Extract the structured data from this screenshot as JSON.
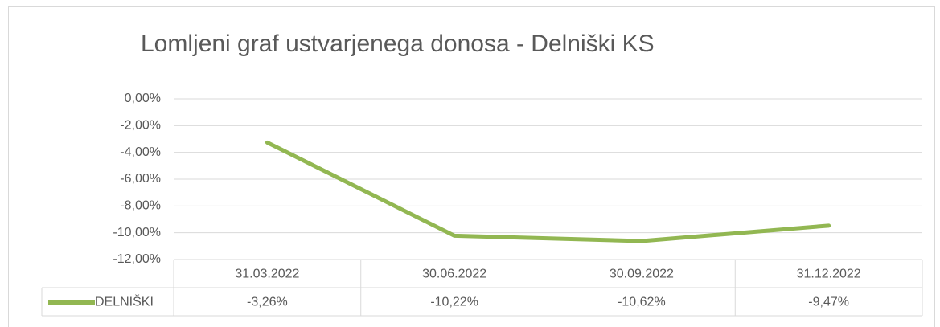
{
  "chart_data": {
    "type": "line",
    "title": "Lomljeni graf ustvarjenega donosa - Delniški KS",
    "categories": [
      "31.03.2022",
      "30.06.2022",
      "30.09.2022",
      "31.12.2022"
    ],
    "series": [
      {
        "name": "DELNIŠKI",
        "color": "#92b752",
        "values": [
          -3.26,
          -10.22,
          -10.62,
          -9.47
        ],
        "value_labels": [
          "-3,26%",
          "-10,22%",
          "-10,62%",
          "-9,47%"
        ]
      }
    ],
    "ylim": [
      -12,
      0
    ],
    "yticks": [
      {
        "value": 0,
        "label": "0,00%"
      },
      {
        "value": -2,
        "label": "-2,00%"
      },
      {
        "value": -4,
        "label": "-4,00%"
      },
      {
        "value": -6,
        "label": "-6,00%"
      },
      {
        "value": -8,
        "label": "-8,00%"
      },
      {
        "value": -10,
        "label": "-10,00%"
      },
      {
        "value": -12,
        "label": "-12,00%"
      }
    ],
    "grid": true
  }
}
